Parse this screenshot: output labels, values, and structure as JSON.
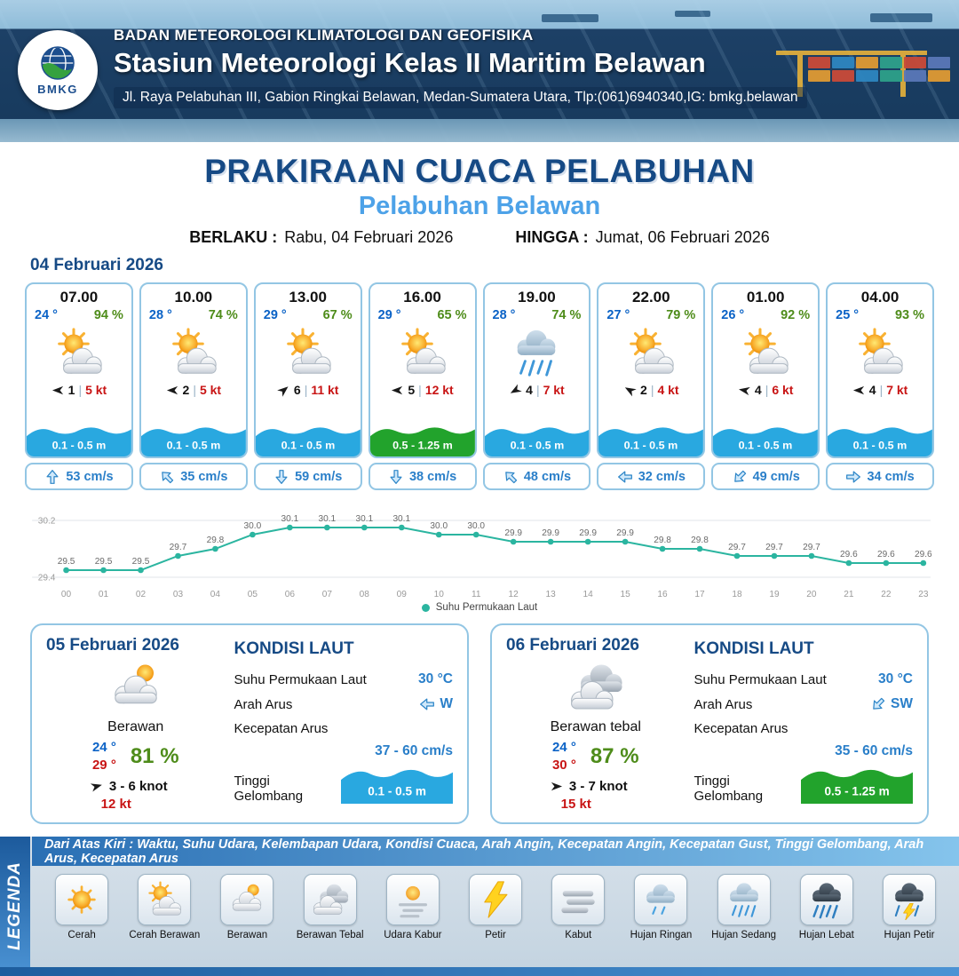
{
  "colors": {
    "wave_blue": "#29a8e0",
    "wave_green": "#22a32c",
    "accent_navy": "#164a85",
    "accent_blue": "#4da2e8",
    "temp_blue": "#0a62c6",
    "humidity_green": "#4e8c1a",
    "gust_red": "#c81414",
    "chart_teal": "#2bb5a0"
  },
  "header": {
    "org": "BADAN METEOROLOGI KLIMATOLOGI DAN GEOFISIKA",
    "station": "Stasiun Meteorologi Kelas II Maritim Belawan",
    "address": "Jl. Raya Pelabuhan III, Gabion Ringkai Belawan, Medan-Sumatera Utara, Tlp:(061)6940340,IG: bmkg.belawan",
    "logo_text": "BMKG"
  },
  "title": {
    "main": "PRAKIRAAN CUACA PELABUHAN",
    "sub": "Pelabuhan Belawan",
    "berlaku_label": "BERLAKU :",
    "berlaku_value": "Rabu, 04 Februari 2026",
    "hingga_label": "HINGGA :",
    "hingga_value": "Jumat, 06 Februari 2026",
    "date_label": "04 Februari 2026"
  },
  "hourly": [
    {
      "time": "07.00",
      "temp": "24 °",
      "hum": "94 %",
      "icon": "cerah-berawan",
      "wind_rot": 180,
      "wind_num": "1",
      "gust": "5 kt",
      "wave": "0.1 - 0.5 m",
      "wave_color": "blue",
      "cur_rot": -90,
      "current": "53 cm/s"
    },
    {
      "time": "10.00",
      "temp": "28 °",
      "hum": "74 %",
      "icon": "cerah-berawan",
      "wind_rot": 180,
      "wind_num": "2",
      "gust": "5 kt",
      "wave": "0.1 - 0.5 m",
      "wave_color": "blue",
      "cur_rot": -135,
      "current": "35 cm/s"
    },
    {
      "time": "13.00",
      "temp": "29 °",
      "hum": "67 %",
      "icon": "cerah-berawan",
      "wind_rot": -40,
      "wind_num": "6",
      "gust": "11 kt",
      "wave": "0.1 - 0.5 m",
      "wave_color": "blue",
      "cur_rot": 90,
      "current": "59 cm/s"
    },
    {
      "time": "16.00",
      "temp": "29 °",
      "hum": "65 %",
      "icon": "cerah-berawan",
      "wind_rot": 180,
      "wind_num": "5",
      "gust": "12 kt",
      "wave": "0.5 - 1.25 m",
      "wave_color": "green",
      "cur_rot": 90,
      "current": "38 cm/s"
    },
    {
      "time": "19.00",
      "temp": "28 °",
      "hum": "74 %",
      "icon": "hujan-sedang",
      "wind_rot": 150,
      "wind_num": "4",
      "gust": "7 kt",
      "wave": "0.1 - 0.5 m",
      "wave_color": "blue",
      "cur_rot": -135,
      "current": "48 cm/s"
    },
    {
      "time": "22.00",
      "temp": "27 °",
      "hum": "79 %",
      "icon": "cerah-berawan",
      "wind_rot": 210,
      "wind_num": "2",
      "gust": "4 kt",
      "wave": "0.1 - 0.5 m",
      "wave_color": "blue",
      "cur_rot": 180,
      "current": "32 cm/s"
    },
    {
      "time": "01.00",
      "temp": "26 °",
      "hum": "92 %",
      "icon": "cerah-berawan",
      "wind_rot": 190,
      "wind_num": "4",
      "gust": "6 kt",
      "wave": "0.1 - 0.5 m",
      "wave_color": "blue",
      "cur_rot": 135,
      "current": "49 cm/s"
    },
    {
      "time": "04.00",
      "temp": "25 °",
      "hum": "93 %",
      "icon": "cerah-berawan",
      "wind_rot": 180,
      "wind_num": "4",
      "gust": "7 kt",
      "wave": "0.1 - 0.5 m",
      "wave_color": "blue",
      "cur_rot": 0,
      "current": "34 cm/s"
    }
  ],
  "chart_data": {
    "type": "line",
    "title": "",
    "xlabel": "",
    "ylabel": "",
    "x": [
      "00",
      "01",
      "02",
      "03",
      "04",
      "05",
      "06",
      "07",
      "08",
      "09",
      "10",
      "11",
      "12",
      "13",
      "14",
      "15",
      "16",
      "17",
      "18",
      "19",
      "20",
      "21",
      "22",
      "23"
    ],
    "series": [
      {
        "name": "Suhu Permukaan Laut",
        "values": [
          29.5,
          29.5,
          29.5,
          29.7,
          29.8,
          30.0,
          30.1,
          30.1,
          30.1,
          30.1,
          30.0,
          30.0,
          29.9,
          29.9,
          29.9,
          29.9,
          29.8,
          29.8,
          29.7,
          29.7,
          29.7,
          29.6,
          29.6,
          29.6
        ]
      }
    ],
    "ylim": [
      29.4,
      30.2
    ],
    "grid": false,
    "legend_label": "Suhu Permukaan Laut",
    "legend_position": "bottom"
  },
  "sea_labels": {
    "heading": "KONDISI LAUT",
    "sst": "Suhu Permukaan Laut",
    "arah": "Arah Arus",
    "kecepatan": "Kecepatan Arus",
    "gelombang": "Tinggi Gelombang"
  },
  "days": [
    {
      "date": "05 Februari 2026",
      "icon": "berawan",
      "cond": "Berawan",
      "tmin": "24 °",
      "tmax": "29 °",
      "hum": "81 %",
      "wind_rot": -15,
      "wind": "3 - 6 knot",
      "gust": "12 kt",
      "sst": "30 °C",
      "arus_rot": 180,
      "arus_dir": "W",
      "arus_speed": "37 - 60 cm/s",
      "wave": "0.1 - 0.5 m",
      "wave_color": "blue"
    },
    {
      "date": "06 Februari 2026",
      "icon": "berawan-tebal",
      "cond": "Berawan tebal",
      "tmin": "24 °",
      "tmax": "30 °",
      "hum": "87 %",
      "wind_rot": 0,
      "wind": "3 - 7 knot",
      "gust": "15 kt",
      "sst": "30 °C",
      "arus_rot": 135,
      "arus_dir": "SW",
      "arus_speed": "35 - 60 cm/s",
      "wave": "0.5 - 1.25 m",
      "wave_color": "green"
    }
  ],
  "legend": {
    "title": "LEGENDA",
    "desc": "Dari Atas Kiri : Waktu, Suhu Udara, Kelembapan Udara, Kondisi Cuaca, Arah Angin, Kecepatan Angin, Kecepatan Gust, Tinggi Gelombang, Arah Arus, Kecepatan Arus",
    "items": [
      {
        "label": "Cerah",
        "icon": "cerah"
      },
      {
        "label": "Cerah Berawan",
        "icon": "cerah-berawan"
      },
      {
        "label": "Berawan",
        "icon": "berawan"
      },
      {
        "label": "Berawan Tebal",
        "icon": "berawan-tebal"
      },
      {
        "label": "Udara Kabur",
        "icon": "udara-kabur"
      },
      {
        "label": "Petir",
        "icon": "petir"
      },
      {
        "label": "Kabut",
        "icon": "kabut"
      },
      {
        "label": "Hujan Ringan",
        "icon": "hujan-ringan"
      },
      {
        "label": "Hujan Sedang",
        "icon": "hujan-sedang"
      },
      {
        "label": "Hujan Lebat",
        "icon": "hujan-lebat"
      },
      {
        "label": "Hujan Petir",
        "icon": "hujan-petir"
      }
    ]
  }
}
